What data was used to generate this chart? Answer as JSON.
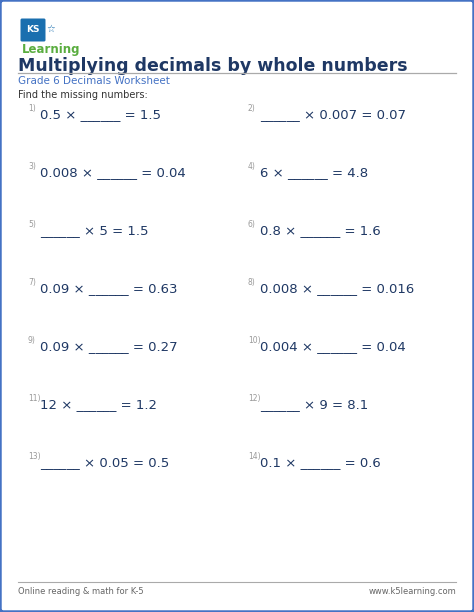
{
  "title": "Multiplying decimals by whole numbers",
  "subtitle": "Grade 6 Decimals Worksheet",
  "instruction": "Find the missing numbers:",
  "background_color": "#ffffff",
  "border_color": "#4472c4",
  "title_color": "#1f3864",
  "subtitle_color": "#4472c4",
  "instruction_color": "#333333",
  "equation_color": "#1f3864",
  "number_color": "#999999",
  "footer_left": "Online reading & math for K-5",
  "footer_right": "www.k5learning.com",
  "footer_color": "#666666",
  "logo_blue": "#1a6faf",
  "logo_green": "#5aad3f",
  "problems": [
    {
      "num": "1)",
      "eq": "0.5 × ______ = 1.5"
    },
    {
      "num": "2)",
      "eq": "______ × 0.007 = 0.07"
    },
    {
      "num": "3)",
      "eq": "0.008 × ______ = 0.04"
    },
    {
      "num": "4)",
      "eq": "6 × ______ = 4.8"
    },
    {
      "num": "5)",
      "eq": "______ × 5 = 1.5"
    },
    {
      "num": "6)",
      "eq": "0.8 × ______ = 1.6"
    },
    {
      "num": "7)",
      "eq": "0.09 × ______ = 0.63"
    },
    {
      "num": "8)",
      "eq": "0.008 × ______ = 0.016"
    },
    {
      "num": "9)",
      "eq": "0.09 × ______ = 0.27"
    },
    {
      "num": "10)",
      "eq": "0.004 × ______ = 0.04"
    },
    {
      "num": "11)",
      "eq": "12 × ______ = 1.2"
    },
    {
      "num": "12)",
      "eq": "______ × 9 = 8.1"
    },
    {
      "num": "13)",
      "eq": "______ × 0.05 = 0.5"
    },
    {
      "num": "14)",
      "eq": "0.1 × ______ = 0.6"
    }
  ],
  "fig_width": 4.74,
  "fig_height": 6.12,
  "dpi": 100
}
